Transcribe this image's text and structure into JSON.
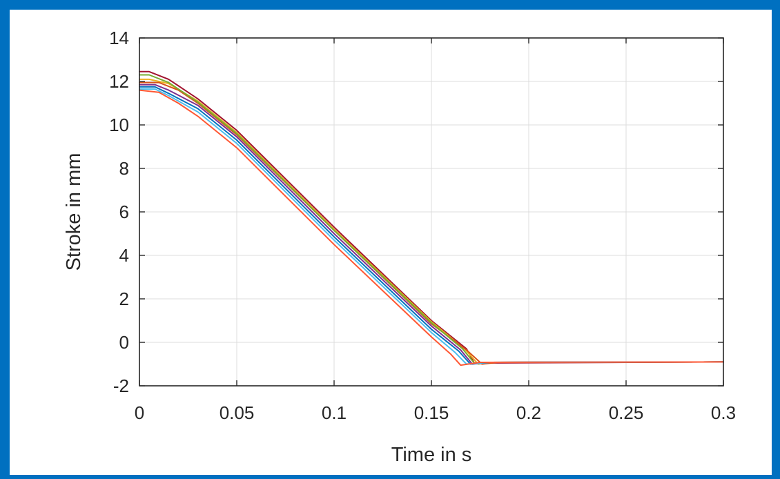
{
  "chart_data": {
    "type": "line",
    "title": "",
    "xlabel": "Time in s",
    "ylabel": "Stroke in mm",
    "xlim": [
      0,
      0.3
    ],
    "ylim": [
      -2,
      14
    ],
    "grid": true,
    "legend": "none",
    "x_tick_labels": [
      "0",
      "0.05",
      "0.1",
      "0.15",
      "0.2",
      "0.25",
      "0.3"
    ],
    "y_tick_labels": [
      "-2",
      "0",
      "2",
      "4",
      "6",
      "8",
      "10",
      "12",
      "14"
    ],
    "series": [
      {
        "color": "#A2142F",
        "points": [
          [
            0,
            12.45
          ],
          [
            0.005,
            12.45
          ],
          [
            0.015,
            12.1
          ],
          [
            0.03,
            11.2
          ],
          [
            0.05,
            9.75
          ],
          [
            0.1,
            5.3
          ],
          [
            0.15,
            1.0
          ],
          [
            0.168,
            -0.3
          ],
          [
            0.172,
            -0.95
          ],
          [
            0.18,
            -0.95
          ],
          [
            0.3,
            -0.9
          ]
        ]
      },
      {
        "color": "#EDB120",
        "points": [
          [
            0,
            12.1
          ],
          [
            0.005,
            12.1
          ],
          [
            0.015,
            11.9
          ],
          [
            0.03,
            11.1
          ],
          [
            0.05,
            9.65
          ],
          [
            0.1,
            5.2
          ],
          [
            0.15,
            0.95
          ],
          [
            0.167,
            -0.3
          ],
          [
            0.174,
            -1.0
          ],
          [
            0.18,
            -0.92
          ],
          [
            0.3,
            -0.9
          ]
        ]
      },
      {
        "color": "#D95319",
        "points": [
          [
            0,
            11.95
          ],
          [
            0.01,
            11.95
          ],
          [
            0.02,
            11.6
          ],
          [
            0.03,
            11.0
          ],
          [
            0.05,
            9.55
          ],
          [
            0.1,
            5.15
          ],
          [
            0.15,
            0.85
          ],
          [
            0.168,
            -0.35
          ],
          [
            0.176,
            -1.0
          ],
          [
            0.184,
            -0.92
          ],
          [
            0.3,
            -0.9
          ]
        ]
      },
      {
        "color": "#77AC30",
        "points": [
          [
            0,
            12.3
          ],
          [
            0.005,
            12.3
          ],
          [
            0.015,
            11.95
          ],
          [
            0.03,
            11.05
          ],
          [
            0.05,
            9.6
          ],
          [
            0.1,
            5.15
          ],
          [
            0.15,
            0.9
          ],
          [
            0.166,
            -0.3
          ],
          [
            0.172,
            -0.95
          ],
          [
            0.18,
            -0.92
          ],
          [
            0.3,
            -0.9
          ]
        ]
      },
      {
        "color": "#7E2F8E",
        "points": [
          [
            0,
            11.85
          ],
          [
            0.008,
            11.85
          ],
          [
            0.015,
            11.6
          ],
          [
            0.03,
            10.9
          ],
          [
            0.05,
            9.45
          ],
          [
            0.1,
            5.0
          ],
          [
            0.15,
            0.75
          ],
          [
            0.165,
            -0.35
          ],
          [
            0.171,
            -1.0
          ],
          [
            0.18,
            -0.92
          ],
          [
            0.3,
            -0.9
          ]
        ]
      },
      {
        "color": "#0072BD",
        "points": [
          [
            0,
            11.75
          ],
          [
            0.008,
            11.75
          ],
          [
            0.015,
            11.45
          ],
          [
            0.03,
            10.75
          ],
          [
            0.05,
            9.3
          ],
          [
            0.1,
            4.85
          ],
          [
            0.15,
            0.6
          ],
          [
            0.164,
            -0.4
          ],
          [
            0.17,
            -1.0
          ],
          [
            0.18,
            -0.92
          ],
          [
            0.3,
            -0.9
          ]
        ]
      },
      {
        "color": "#4DBEEE",
        "points": [
          [
            0,
            11.65
          ],
          [
            0.008,
            11.65
          ],
          [
            0.015,
            11.35
          ],
          [
            0.03,
            10.6
          ],
          [
            0.05,
            9.15
          ],
          [
            0.1,
            4.7
          ],
          [
            0.15,
            0.45
          ],
          [
            0.162,
            -0.45
          ],
          [
            0.168,
            -1.0
          ],
          [
            0.18,
            -0.92
          ],
          [
            0.3,
            -0.9
          ]
        ]
      },
      {
        "color": "#FF5733",
        "points": [
          [
            0,
            11.6
          ],
          [
            0.01,
            11.5
          ],
          [
            0.02,
            11.0
          ],
          [
            0.03,
            10.4
          ],
          [
            0.05,
            8.95
          ],
          [
            0.1,
            4.5
          ],
          [
            0.15,
            0.25
          ],
          [
            0.16,
            -0.55
          ],
          [
            0.165,
            -1.05
          ],
          [
            0.175,
            -0.92
          ],
          [
            0.3,
            -0.9
          ]
        ]
      }
    ]
  }
}
